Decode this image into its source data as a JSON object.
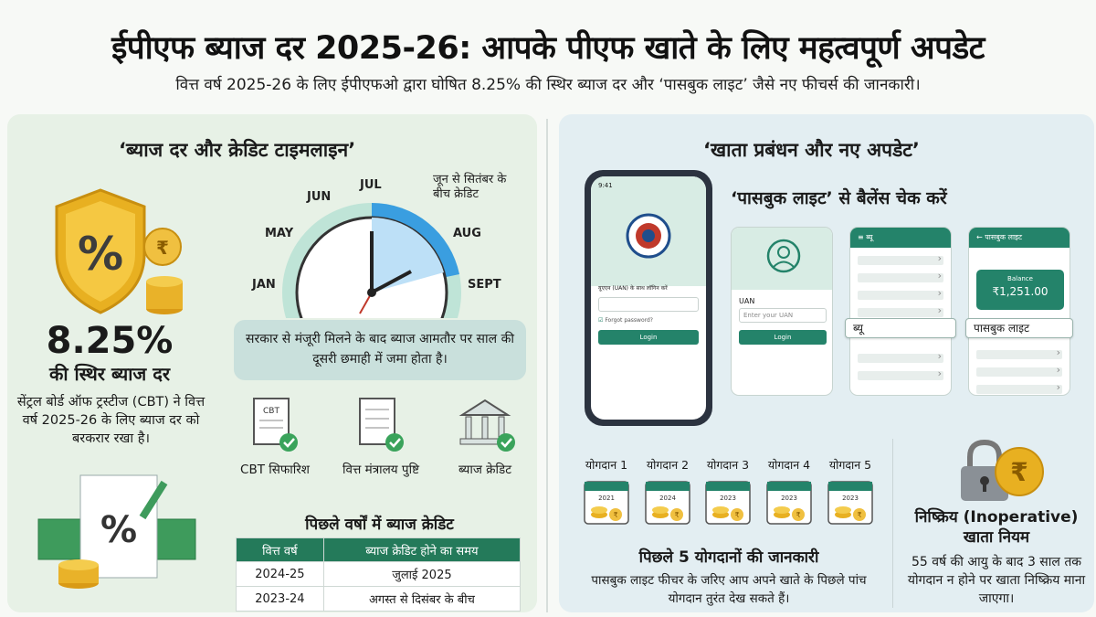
{
  "header": {
    "title": "ईपीएफ ब्याज दर 2025-26: आपके पीएफ खाते के लिए महत्वपूर्ण अपडेट",
    "subtitle": "वित्त वर्ष 2025-26 के लिए ईपीएफओ द्वारा घोषित 8.25% की स्थिर ब्याज दर और ‘पासबुक लाइट’ जैसे नए फीचर्स की जानकारी।"
  },
  "left": {
    "title": "‘ब्याज दर और क्रेडिट टाइमलाइन’",
    "rate": "8.25%",
    "rate_label": "की स्थिर ब्याज दर",
    "rate_desc": "सेंट्रल बोर्ड ऑफ ट्रस्टीज (CBT) ने वित्त वर्ष 2025-26 के लिए ब्याज दर को बरकरार रखा है।",
    "months": [
      "JAN",
      "MAY",
      "JUN",
      "JUL",
      "AUG",
      "SEPT"
    ],
    "callout": "जून से सितंबर के बीच क्रेडिट",
    "dial_note": "सरकार से मंजूरी मिलने के बाद ब्याज आमतौर पर साल की दूसरी छमाही में जमा होता है।",
    "steps": [
      {
        "label": "CBT सिफारिश",
        "icon": "cbt-document-icon",
        "doc_text": "CBT"
      },
      {
        "label": "वित्त मंत्रालय पुष्टि",
        "icon": "finance-document-icon"
      },
      {
        "label": "ब्याज क्रेडिट",
        "icon": "bank-icon"
      }
    ],
    "table_title": "पिछले वर्षों में ब्याज क्रेडिट",
    "table_headers": [
      "वित्त वर्ष",
      "ब्याज क्रेडिट होने का समय"
    ],
    "table_rows": [
      [
        "2024-25",
        "जुलाई 2025"
      ],
      [
        "2023-24",
        "अगस्त से दिसंबर के बीच"
      ]
    ]
  },
  "right": {
    "title": "‘खाता प्रबंधन और नए अपडेट’",
    "passbook_title": "‘पासबुक लाइट’ से बैलेंस चेक करें",
    "phone": {
      "time": "9:41",
      "login_caption": "यूएएन (UAN) के साथ लॉगिन करें",
      "forgot": "Forgot password?",
      "login_btn": "Login"
    },
    "screen1": {
      "uan_label": "UAN",
      "uan_placeholder": "Enter your UAN",
      "login_btn": "Login"
    },
    "screen2": {
      "menu": "ब्यू",
      "chip": "ब्यू"
    },
    "screen3": {
      "header": "पासबुक लाइट",
      "balance_label": "Balance",
      "balance": "₹1,251.00",
      "chip": "पासबुक लाइट"
    },
    "contributions": [
      "योगदान 1",
      "योगदान 2",
      "योगदान 3",
      "योगदान 4",
      "योगदान 5"
    ],
    "contribution_years": [
      "2021",
      "2024",
      "2023",
      "2023",
      "2023"
    ],
    "contrib_title": "पिछले 5 योगदानों की जानकारी",
    "contrib_desc": "पासबुक लाइट फीचर के जरिए आप अपने खाते के पिछले पांच योगदान तुरंत देख सकते हैं।",
    "inop_title": "निष्क्रिय (Inoperative) खाता नियम",
    "inop_desc": "55 वर्ष की आयु के बाद 3 साल तक योगदान न होने पर खाता निष्क्रिय माना जाएगा।"
  },
  "colors": {
    "accent_green": "#247a5a",
    "gold": "#e8b021",
    "left_panel": "#e7f1e6",
    "right_panel": "#e3eef2",
    "dial_blue": "#3a9ee0"
  }
}
